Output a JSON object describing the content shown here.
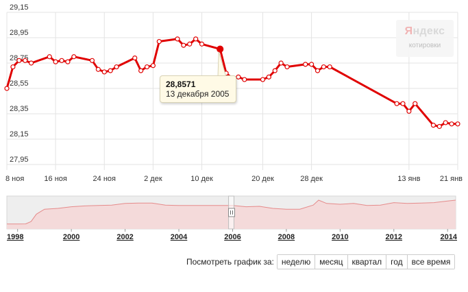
{
  "chart_data": [
    {
      "type": "line",
      "ylim": [
        27.95,
        29.15
      ],
      "y_ticks": [
        "29,15",
        "28,95",
        "28,75",
        "28,55",
        "28,35",
        "28,15",
        "27,95"
      ],
      "y_tick_values": [
        29.15,
        28.95,
        28.75,
        28.55,
        28.35,
        28.15,
        27.95
      ],
      "x_tick_labels": [
        "8 ноя",
        "16 ноя",
        "24 ноя",
        "2 дек",
        "10 дек",
        "20 дек",
        "28 дек",
        "13 янв",
        "21 янв"
      ],
      "x_tick_dates": [
        "2005-11-08",
        "2005-11-16",
        "2005-11-24",
        "2005-12-02",
        "2005-12-10",
        "2005-12-20",
        "2005-12-28",
        "2006-01-13",
        "2006-01-21"
      ],
      "grid": true,
      "series": [
        {
          "x": [
            "2005-11-08",
            "2005-11-09",
            "2005-11-10",
            "2005-11-11",
            "2005-11-12",
            "2005-11-15",
            "2005-11-16",
            "2005-11-17",
            "2005-11-18",
            "2005-11-19",
            "2005-11-22",
            "2005-11-23",
            "2005-11-24",
            "2005-11-25",
            "2005-11-26",
            "2005-11-29",
            "2005-11-30",
            "2005-12-01",
            "2005-12-02",
            "2005-12-03",
            "2005-12-06",
            "2005-12-07",
            "2005-12-08",
            "2005-12-09",
            "2005-12-10",
            "2005-12-13",
            "2005-12-14",
            "2005-12-15",
            "2005-12-16",
            "2005-12-17",
            "2005-12-20",
            "2005-12-21",
            "2005-12-22",
            "2005-12-23",
            "2005-12-24",
            "2005-12-27",
            "2005-12-28",
            "2005-12-29",
            "2005-12-30",
            "2005-12-31",
            "2006-01-11",
            "2006-01-12",
            "2006-01-13",
            "2006-01-14",
            "2006-01-17",
            "2006-01-18",
            "2006-01-19",
            "2006-01-20",
            "2006-01-21"
          ],
          "values": [
            28.55,
            28.72,
            28.77,
            28.77,
            28.75,
            28.8,
            28.76,
            28.77,
            28.76,
            28.8,
            28.77,
            28.7,
            28.68,
            28.69,
            28.72,
            28.79,
            28.69,
            28.72,
            28.73,
            28.92,
            28.94,
            28.89,
            28.9,
            28.94,
            28.9,
            28.86,
            28.67,
            28.63,
            28.64,
            28.62,
            28.62,
            28.64,
            28.69,
            28.75,
            28.72,
            28.74,
            28.74,
            28.69,
            28.72,
            28.72,
            28.43,
            28.43,
            28.37,
            28.43,
            28.26,
            28.25,
            28.28,
            28.27,
            28.27
          ]
        }
      ],
      "highlight": {
        "value": "28,8571",
        "date": "13 декабря 2005"
      }
    },
    {
      "type": "area",
      "x_tick_labels": [
        "1998",
        "2000",
        "2002",
        "2004",
        "2006",
        "2008",
        "2010",
        "2012",
        "2014"
      ],
      "x_tick_years": [
        1998,
        2000,
        2002,
        2004,
        2006,
        2008,
        2010,
        2012,
        2014
      ],
      "series": [
        {
          "x": [
            1997.6,
            1998.0,
            1998.3,
            1998.5,
            1998.7,
            1999.0,
            1999.5,
            2000.0,
            2000.5,
            2001.0,
            2001.5,
            2002.0,
            2002.5,
            2003.0,
            2003.5,
            2004.0,
            2004.5,
            2005.0,
            2005.5,
            2006.0,
            2006.5,
            2007.0,
            2007.5,
            2008.0,
            2008.5,
            2009.0,
            2009.2,
            2009.5,
            2010.0,
            2010.5,
            2011.0,
            2011.5,
            2012.0,
            2012.5,
            2013.0,
            2013.5,
            2014.0,
            2014.3
          ],
          "values": [
            6,
            6,
            6.2,
            9,
            18,
            24,
            25,
            27,
            28,
            28.5,
            29,
            31,
            31.5,
            31.5,
            29,
            28.5,
            28.5,
            28.5,
            28.5,
            28.5,
            27,
            27.5,
            25,
            24,
            24,
            29,
            35,
            31,
            30,
            31,
            28.5,
            29,
            32,
            31,
            31.5,
            32,
            34,
            35
          ]
        }
      ],
      "window": {
        "start_year": 2005.85,
        "end_year": 2006.05
      }
    }
  ],
  "logo": {
    "name_first": "Я",
    "name_rest": "ндекс",
    "sub": "котировки"
  },
  "tooltip": {
    "value": "28,8571",
    "date": "13 декабря 2005"
  },
  "period_selector": {
    "label": "Посмотреть график за:",
    "buttons": [
      "неделю",
      "месяц",
      "квартал",
      "год",
      "все время"
    ]
  },
  "colors": {
    "line": "#e00000",
    "grid": "#e3e3e3",
    "overview_fill": "#f4dada",
    "overview_line": "#e58a8a",
    "overview_bg": "#eeeeee"
  }
}
